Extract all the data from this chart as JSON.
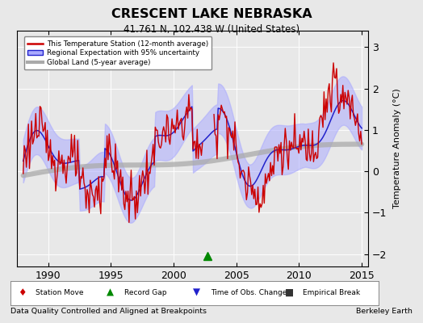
{
  "title": "CRESCENT LAKE NEBRASKA",
  "subtitle": "41.761 N, 102.438 W (United States)",
  "xlabel_bottom": "Data Quality Controlled and Aligned at Breakpoints",
  "xlabel_right": "Berkeley Earth",
  "ylabel": "Temperature Anomaly (°C)",
  "xlim": [
    1987.5,
    2015.5
  ],
  "ylim": [
    -2.3,
    3.4
  ],
  "yticks": [
    -2,
    -1,
    0,
    1,
    2,
    3
  ],
  "xticks": [
    1990,
    1995,
    2000,
    2005,
    2010,
    2015
  ],
  "background_color": "#e8e8e8",
  "plot_background": "#e8e8e8",
  "legend_labels": [
    "This Temperature Station (12-month average)",
    "Regional Expectation with 95% uncertainty",
    "Global Land (5-year average)"
  ],
  "record_gap_x": 2002.7,
  "record_gap_y": -2.05,
  "record_gap_color": "#008800",
  "grid_color": "#ffffff",
  "grid_alpha": 0.9,
  "station_color": "#cc0000",
  "regional_color": "#2222cc",
  "regional_band_color": "#aaaaff",
  "global_color": "#aaaaaa"
}
